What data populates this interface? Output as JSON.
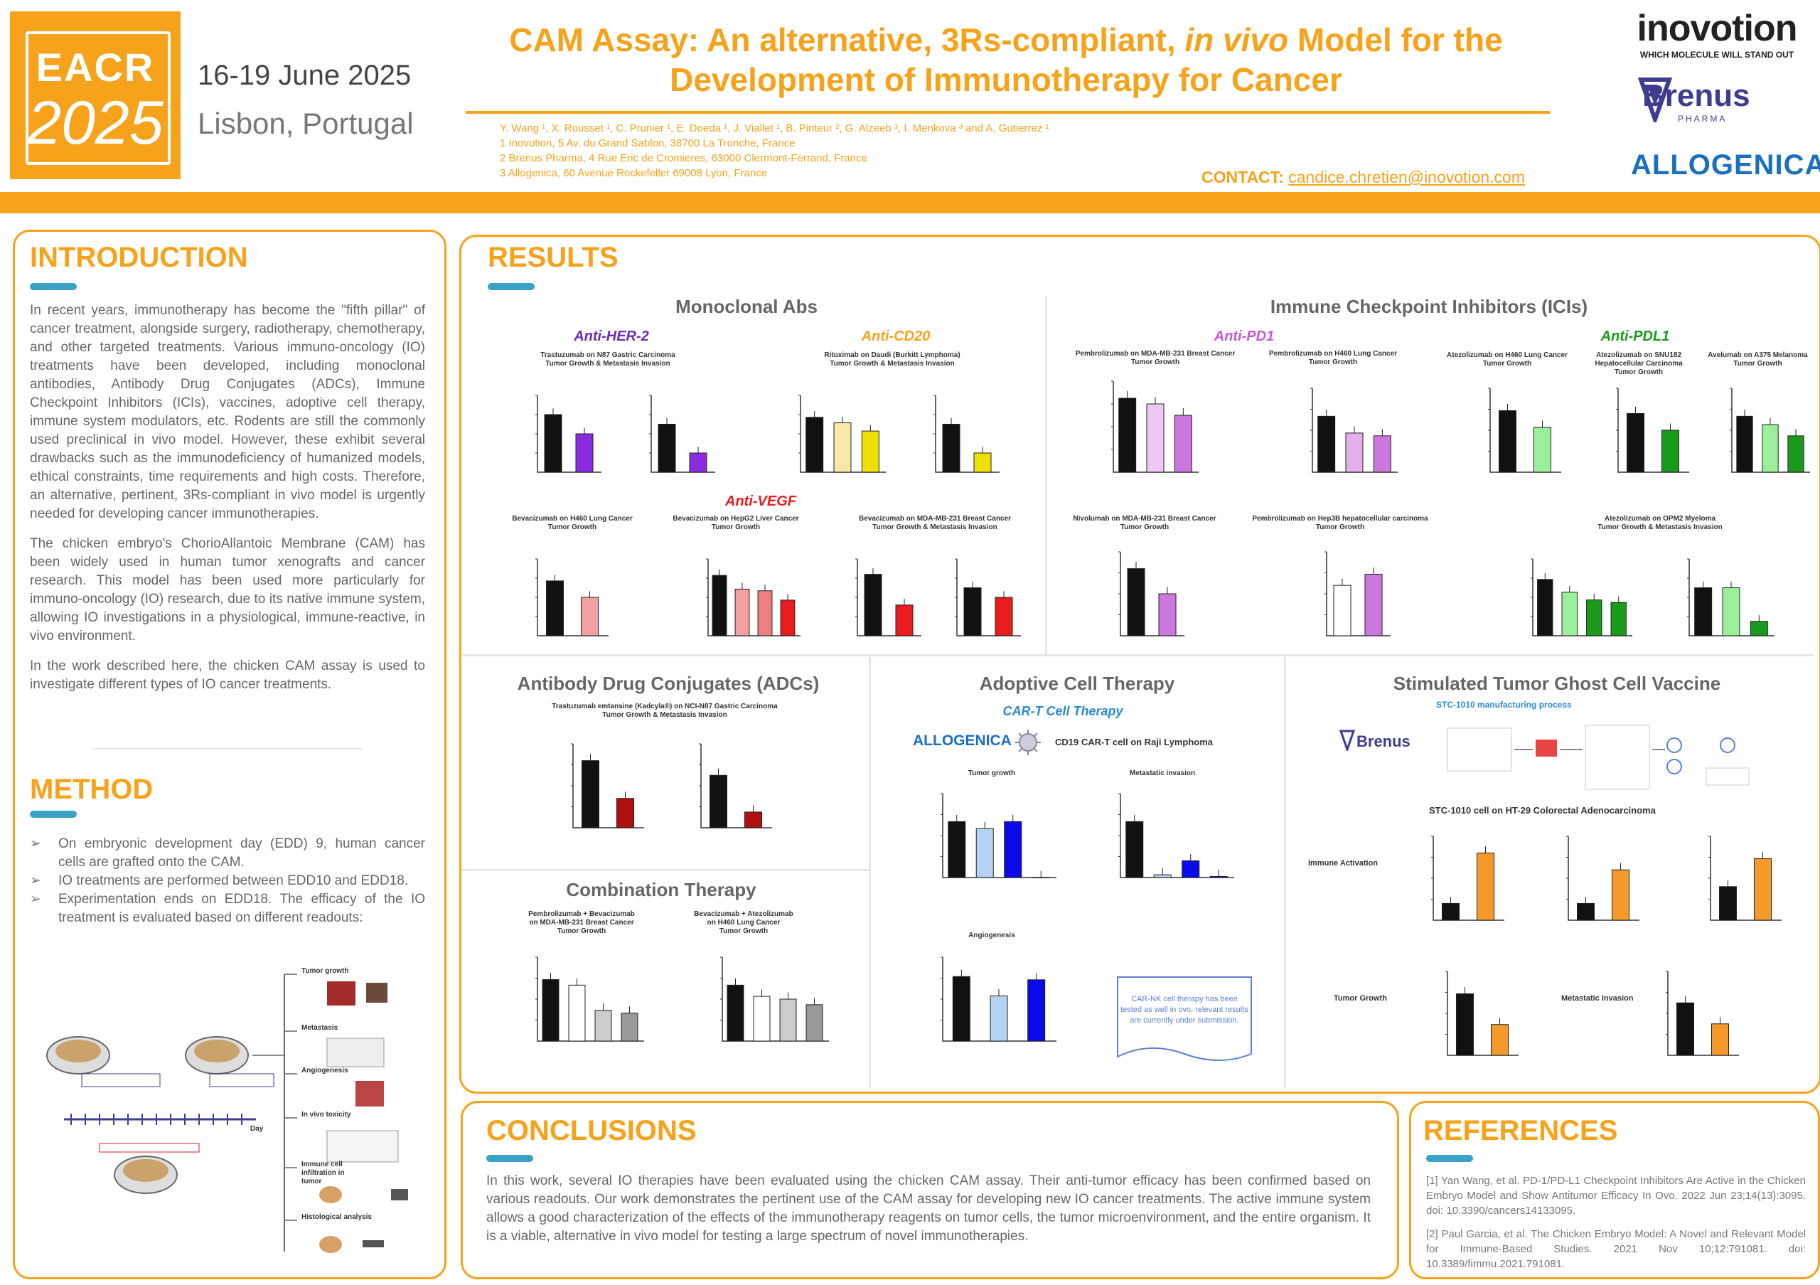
{
  "header": {
    "logo_top": "EACR",
    "logo_bottom": "2025",
    "date": "16-19 June 2025",
    "place": "Lisbon, Portugal",
    "title_line1_a": "CAM Assay: An alternative, 3Rs-compliant, ",
    "title_line1_em": "in vivo",
    "title_line1_b": " Model for the",
    "title_line2": "Development of Immunotherapy for Cancer",
    "authors": "Y. Wang ¹, X. Rousset ¹, C. Prunier ¹, E. Doeda ¹, J. Viallet ¹, B. Pinteur ², G. Alzeeb ³, I. Menkova ³ and A. Gutierrez ¹",
    "affil1": "1 Inovotion, 5 Av. du Grand Sablon, 38700 La Tronche, France",
    "affil2": "2 Brenus Pharma, 4 Rue Eric de Cromieres, 63000 Clermont-Ferrand, France",
    "affil3": "3 Allogenica, 60 Avenue Rockefeller 69008 Lyon, France",
    "contact_label": "CONTACT:",
    "contact_email": "candice.chretien@inovotion.com",
    "brand1": "inovotion",
    "brand1_tag": "WHICH MOLECULE WILL STAND OUT",
    "brand2": "Brenus",
    "brand2_tag": "PHARMA",
    "brand3": "ALLOGENICA"
  },
  "introduction": {
    "title": "INTRODUCTION",
    "p1": "In recent years, immunotherapy has become the \"fifth pillar\" of cancer treatment, alongside surgery, radiotherapy, chemotherapy, and other targeted treatments. Various immuno-oncology (IO) treatments have been developed, including monoclonal antibodies, Antibody Drug Conjugates (ADCs), Immune Checkpoint Inhibitors (ICIs), vaccines, adoptive cell therapy, immune system modulators, etc. Rodents are still the commonly used preclinical in vivo model. However, these exhibit several drawbacks such as the immunodeficiency of humanized models, ethical constraints, time requirements and high costs. Therefore, an alternative, pertinent, 3Rs-compliant in vivo model is urgently needed for developing cancer immunotherapies.",
    "p2": "The chicken embryo's ChorioAllantoic Membrane (CAM) has been widely used in human tumor xenografts and cancer research. This model has been used more particularly for immuno-oncology (IO) research, due to its native immune system, allowing IO investigations in a physiological, immune-reactive, in vivo environment.",
    "p3": "In the work described here, the chicken CAM assay is used to investigate different types of IO cancer treatments."
  },
  "method": {
    "title": "METHOD",
    "items": [
      "On embryonic development day (EDD) 9, human cancer cells are grafted onto the CAM.",
      "IO treatments are performed between EDD10 and EDD18.",
      "Experimentation ends on EDD18. The efficacy of the IO treatment is evaluated based on different readouts:"
    ],
    "readouts": [
      "Tumor growth",
      "Metastasis",
      "Angiogenesis",
      "In vivo toxicity",
      "Immune cell infiltration in tumor",
      "Histological analysis"
    ],
    "timeline_label": "Day"
  },
  "results": {
    "title": "RESULTS",
    "sections": {
      "mabs": "Monoclonal Abs",
      "icis": "Immune Checkpoint Inhibitors (ICIs)",
      "adcs": "Antibody Drug Conjugates (ADCs)",
      "act": "Adoptive Cell Therapy",
      "combo": "Combination Therapy",
      "vaccine": "Stimulated Tumor Ghost Cell Vaccine"
    },
    "labels": {
      "her2": "Anti-HER-2",
      "cd20": "Anti-CD20",
      "vegf": "Anti-VEGF",
      "pd1": "Anti-PD1",
      "pdl1": "Anti-PDL1",
      "cart": "CAR-T Cell Therapy",
      "cart_model": "CD19 CAR-T cell on Raji Lymphoma",
      "allogenica": "ALLOGENICA",
      "brenus": "Brenus",
      "stc_process": "STC-1010 manufacturing process",
      "stc_model": "STC-1010 cell on HT-29 Colorectal Adenocarcinoma",
      "immune_activation": "Immune Activation",
      "tumor_growth": "Tumor Growth",
      "metastatic_invasion": "Metastatic Invasion",
      "car_nk_note": "CAR-NK cell therapy has been tested as well in ovo, relevant results are currently under submission."
    },
    "chart_captions": {
      "her2": "Trastuzumab on N87 Gastric Carcinoma\nTumor Growth & Metastasis Invasion",
      "cd20": "Rituximab on Daudi (Burkitt Lymphoma)\nTumor Growth & Metastasis Invasion",
      "vegf1": "Bevacizumab on H460 Lung Cancer\nTumor Growth",
      "vegf2": "Bevacizumab on HepG2 Liver Cancer\nTumor Growth",
      "vegf3": "Bevacizumab on MDA-MB-231 Breast Cancer\nTumor Growth & Metastasis Invasion",
      "pd1a": "Pembrolizumab on MDA-MB-231 Breast Cancer\nTumor Growth",
      "pd1b": "Pembrolizumab on H460 Lung Cancer\nTumor Growth",
      "pdl1a": "Atezolizumab on H460 Lung Cancer\nTumor Growth",
      "pdl1b": "Atezolizumab on SNU182\nHepatocellular Carcinoma\nTumor Growth",
      "pdl1c": "Avelumab on A375 Melanoma\nTumor Growth",
      "pd1c": "Nivolumab on MDA-MB-231 Breast Cancer\nTumor Growth",
      "pd1d": "Pembrolizumab on Hep3B hepatocellular carcinoma\nTumor Growth",
      "pdl1d": "Atezolizumab on OPM2 Myeloma\nTumor Growth & Metastasis Invasion",
      "adc": "Trastuzumab emtansine (Kadcyla®) on NCI-N87 Gastric Carcinoma\nTumor Growth & Metastasis Invasion",
      "combo1": "Pembrolizumab + Bevacizumab\non MDA-MB-231 Breast Cancer\nTumor Growth",
      "combo2": "Bevacizumab + Atezolizumab\non H460 Lung Cancer\nTumor Growth",
      "act1": "Tumor growth",
      "act2": "Metastatic invasion",
      "act3": "Angiogenesis"
    }
  },
  "conclusions": {
    "title": "CONCLUSIONS",
    "text": "In this work, several IO therapies have been evaluated using the chicken CAM assay. Their anti-tumor efficacy has been confirmed based on various readouts. Our work demonstrates the pertinent use of the CAM assay for developing new IO cancer treatments. The active immune system allows a good characterization of the effects of the immunotherapy reagents on tumor cells, the tumor microenvironment, and the entire organism. It is a viable, alternative in vivo model for testing a large spectrum of novel immunotherapies."
  },
  "references": {
    "title": "REFERENCES",
    "r1": "[1] Yan Wang, et al. PD-1/PD-L1 Checkpoint Inhibitors Are Active in the Chicken Embryo Model and Show Antitumor Efficacy In Ovo. 2022 Jun 23;14(13):3095. doi: 10.3390/cancers14133095.",
    "r2": "[2] Paul Garcia, et al. The Chicken Embryo Model: A Novel and Relevant Model for Immune-Based Studies. 2021 Nov 10;12:791081. doi: 10.3389/fimmu.2021.791081."
  },
  "colors": {
    "accent": "#f7a21b",
    "bar_accent": "#3aa2c4",
    "her2": "#8a2be2",
    "cd20": "#f0e000",
    "vegf": "#e81c1c",
    "pd1": "#cc77dd",
    "pdl1": "#1a9a1a",
    "act": "#0a0ae8",
    "vaccine": "#f59a2a",
    "adc": "#b01010"
  },
  "chart_data": [
    {
      "id": "her2_tg",
      "type": "bar",
      "values": [
        120,
        80
      ],
      "colors": [
        "#111",
        "#8a2be2"
      ],
      "ylim": [
        0,
        160
      ]
    },
    {
      "id": "her2_met",
      "type": "bar",
      "values": [
        1.0,
        0.4
      ],
      "colors": [
        "#111",
        "#8a2be2"
      ],
      "ylim": [
        0,
        1.6
      ]
    },
    {
      "id": "cd20_tg",
      "type": "bar",
      "values": [
        100,
        90,
        75
      ],
      "colors": [
        "#111",
        "#f7e8a8",
        "#f0e000"
      ],
      "ylim": [
        0,
        140
      ]
    },
    {
      "id": "cd20_met",
      "type": "bar",
      "values": [
        1.0,
        0.4
      ],
      "colors": [
        "#111",
        "#f0e000"
      ],
      "ylim": [
        0,
        1.6
      ]
    },
    {
      "id": "vegf_h460",
      "type": "bar",
      "values": [
        100,
        70
      ],
      "colors": [
        "#111",
        "#f4a0a0"
      ],
      "ylim": [
        0,
        140
      ]
    },
    {
      "id": "vegf_hepg2",
      "type": "bar",
      "values": [
        110,
        85,
        82,
        65
      ],
      "colors": [
        "#111",
        "#f4a0a0",
        "#f08080",
        "#e81c1c"
      ],
      "ylim": [
        0,
        140
      ]
    },
    {
      "id": "vegf_mda_tg",
      "type": "bar",
      "values": [
        120,
        60
      ],
      "colors": [
        "#111",
        "#e81c1c"
      ],
      "ylim": [
        0,
        150
      ]
    },
    {
      "id": "vegf_mda_met",
      "type": "bar",
      "values": [
        1.0,
        0.8
      ],
      "colors": [
        "#111",
        "#e81c1c"
      ],
      "ylim": [
        0,
        1.6
      ]
    },
    {
      "id": "pd1_mda",
      "type": "bar",
      "values": [
        130,
        120,
        100
      ],
      "colors": [
        "#111",
        "#edc8f2",
        "#cc77dd"
      ],
      "ylim": [
        0,
        160
      ]
    },
    {
      "id": "pd1_h460",
      "type": "bar",
      "values": [
        100,
        70,
        65
      ],
      "colors": [
        "#111",
        "#e3b0ec",
        "#cc77dd"
      ],
      "ylim": [
        0,
        150
      ]
    },
    {
      "id": "pdl1_h460",
      "type": "bar",
      "values": [
        110,
        80
      ],
      "colors": [
        "#111",
        "#9af09a"
      ],
      "ylim": [
        0,
        150
      ]
    },
    {
      "id": "pdl1_snu",
      "type": "bar",
      "values": [
        105,
        75
      ],
      "colors": [
        "#111",
        "#1a9a1a"
      ],
      "ylim": [
        0,
        150
      ]
    },
    {
      "id": "pdl1_a375",
      "type": "bar",
      "values": [
        100,
        85,
        65
      ],
      "colors": [
        "#111",
        "#9af09a",
        "#1a9a1a"
      ],
      "ylim": [
        0,
        150
      ]
    },
    {
      "id": "pd1_nivo",
      "type": "bar",
      "values": [
        120,
        75
      ],
      "colors": [
        "#111",
        "#cc77dd"
      ],
      "ylim": [
        0,
        150
      ]
    },
    {
      "id": "pd1_hep3b",
      "type": "bar",
      "values": [
        90,
        110
      ],
      "colors": [
        "#fff",
        "#cc77dd"
      ],
      "ylim": [
        0,
        150
      ]
    },
    {
      "id": "pdl1_opm2_tg",
      "type": "bar",
      "values": [
        110,
        85,
        70,
        65
      ],
      "colors": [
        "#111",
        "#9af09a",
        "#1a9a1a",
        "#1a9a1a"
      ],
      "ylim": [
        0,
        150
      ]
    },
    {
      "id": "pdl1_opm2_met",
      "type": "bar",
      "values": [
        1.0,
        1.0,
        0.3
      ],
      "colors": [
        "#111",
        "#9af09a",
        "#1a9a1a"
      ],
      "ylim": [
        0,
        1.6
      ]
    },
    {
      "id": "adc_tg",
      "type": "bar",
      "values": [
        160,
        70
      ],
      "colors": [
        "#111",
        "#b01010"
      ],
      "ylim": [
        0,
        200
      ]
    },
    {
      "id": "adc_met",
      "type": "bar",
      "values": [
        1.0,
        0.3
      ],
      "colors": [
        "#111",
        "#b01010"
      ],
      "ylim": [
        0,
        1.6
      ]
    },
    {
      "id": "combo_1",
      "type": "bar",
      "values": [
        110,
        100,
        55,
        50
      ],
      "colors": [
        "#111",
        "#fff",
        "#ccc",
        "#999"
      ],
      "ylim": [
        0,
        150
      ]
    },
    {
      "id": "combo_2",
      "type": "bar",
      "values": [
        100,
        80,
        75,
        65
      ],
      "colors": [
        "#111",
        "#fff",
        "#ccc",
        "#999"
      ],
      "ylim": [
        0,
        150
      ]
    },
    {
      "id": "act_tg",
      "type": "bar",
      "values": [
        80,
        70,
        80,
        0
      ],
      "colors": [
        "#111",
        "#b6d2f2",
        "#0a0ae8",
        "#0a0ae8"
      ],
      "ylim": [
        0,
        120
      ]
    },
    {
      "id": "act_met",
      "type": "bar",
      "values": [
        1.0,
        0.05,
        0.3,
        0.02
      ],
      "colors": [
        "#111",
        "#b6d2f2",
        "#0a0ae8",
        "#0a0ae8"
      ],
      "ylim": [
        0,
        1.5
      ]
    },
    {
      "id": "act_ang",
      "type": "bar",
      "values": [
        100,
        70,
        95
      ],
      "colors": [
        "#111",
        "#b6d2f2",
        "#0a0ae8"
      ],
      "ylim": [
        0,
        130
      ]
    },
    {
      "id": "vac_ia1",
      "type": "bar",
      "values": [
        30,
        120
      ],
      "colors": [
        "#111",
        "#f59a2a"
      ],
      "ylim": [
        0,
        150
      ]
    },
    {
      "id": "vac_ia2",
      "type": "bar",
      "values": [
        30,
        90
      ],
      "colors": [
        "#111",
        "#f59a2a"
      ],
      "ylim": [
        0,
        150
      ]
    },
    {
      "id": "vac_ia3",
      "type": "bar",
      "values": [
        60,
        110
      ],
      "colors": [
        "#111",
        "#f59a2a"
      ],
      "ylim": [
        0,
        150
      ]
    },
    {
      "id": "vac_tg",
      "type": "bar",
      "values": [
        110,
        55
      ],
      "colors": [
        "#111",
        "#f59a2a"
      ],
      "ylim": [
        0,
        150
      ]
    },
    {
      "id": "vac_met",
      "type": "bar",
      "values": [
        1.0,
        0.6
      ],
      "colors": [
        "#111",
        "#f59a2a"
      ],
      "ylim": [
        0,
        1.6
      ]
    }
  ]
}
